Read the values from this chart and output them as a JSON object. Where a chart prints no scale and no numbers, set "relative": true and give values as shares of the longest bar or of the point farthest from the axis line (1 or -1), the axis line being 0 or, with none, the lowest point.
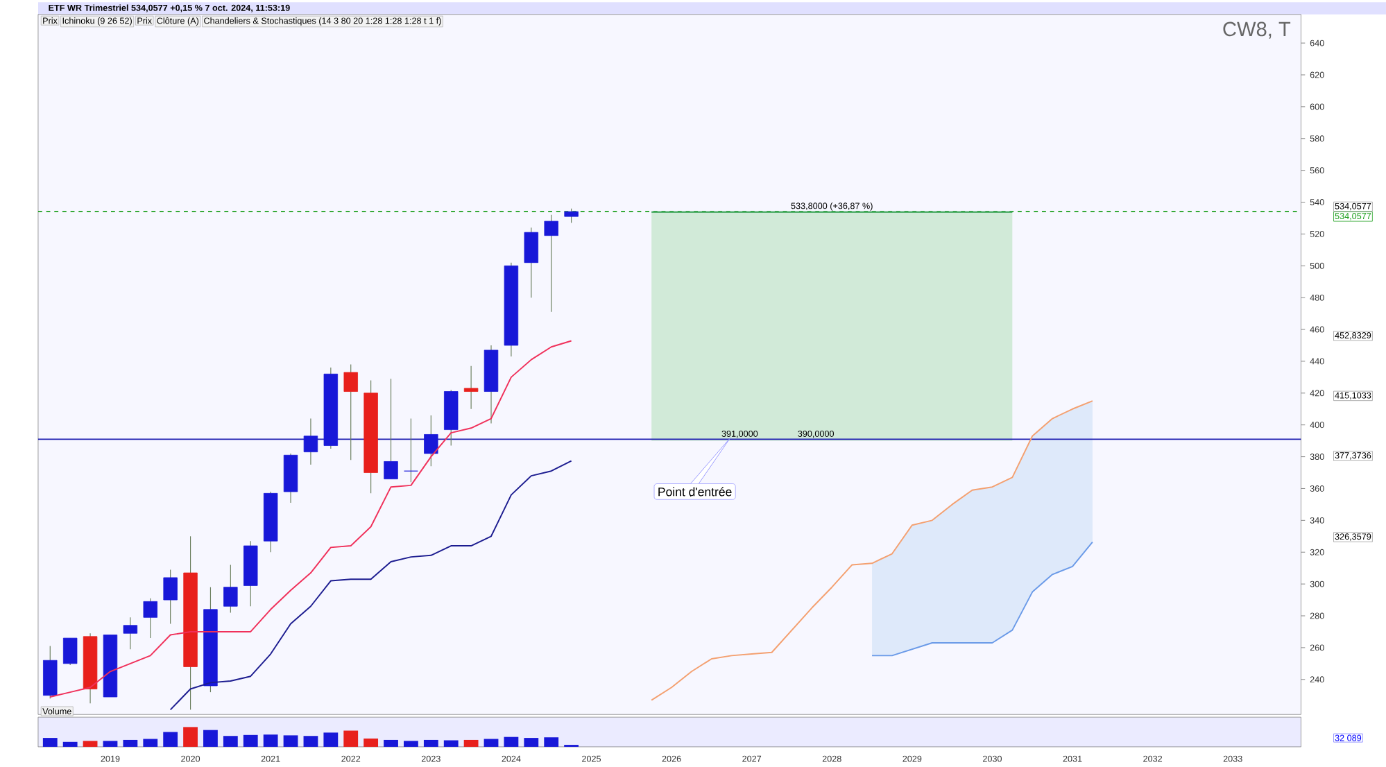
{
  "chart_data": [
    {
      "type": "candlestick",
      "title": "ETF WR Trimestriel 534,0577 +0,15 % 7 oct. 2024, 11:53:19",
      "subtitle": "CW8, T",
      "x": [
        2018.25,
        2018.5,
        2018.75,
        2019.0,
        2019.25,
        2019.5,
        2019.75,
        2020.0,
        2020.25,
        2020.5,
        2020.75,
        2021.0,
        2021.25,
        2021.5,
        2021.75,
        2022.0,
        2022.25,
        2022.5,
        2022.75,
        2023.0,
        2023.25,
        2023.5,
        2023.75,
        2024.0,
        2024.25,
        2024.5,
        2024.75
      ],
      "ohlc": [
        [
          230,
          261,
          228,
          252
        ],
        [
          250,
          266,
          249,
          266
        ],
        [
          267,
          269,
          225,
          234
        ],
        [
          229,
          268,
          229,
          268
        ],
        [
          269,
          279,
          259,
          274
        ],
        [
          279,
          291,
          266,
          289
        ],
        [
          290,
          309,
          275,
          304
        ],
        [
          307,
          330,
          221,
          248
        ],
        [
          236,
          298,
          232,
          284
        ],
        [
          286,
          312,
          282,
          298
        ],
        [
          299,
          327,
          286,
          324
        ],
        [
          327,
          358,
          320,
          357
        ],
        [
          358,
          382,
          351,
          381
        ],
        [
          383,
          404,
          375,
          393
        ],
        [
          387,
          436,
          385,
          432
        ],
        [
          433,
          438,
          378,
          421
        ],
        [
          420,
          428,
          357,
          370
        ],
        [
          366,
          429,
          366,
          377
        ],
        [
          371,
          404,
          364,
          371
        ],
        [
          382,
          406,
          374,
          394
        ],
        [
          397,
          422,
          387,
          421
        ],
        [
          423,
          437,
          410,
          421
        ],
        [
          421,
          450,
          401,
          447
        ],
        [
          450,
          502,
          443,
          500
        ],
        [
          502,
          524,
          480,
          521
        ],
        [
          519,
          532,
          471,
          528
        ],
        [
          531,
          536,
          527,
          534.0577
        ]
      ],
      "colors": [
        "#1818d8",
        "#1818d8",
        "#e8201c",
        "#1818d8",
        "#1818d8",
        "#1818d8",
        "#1818d8",
        "#e8201c",
        "#1818d8",
        "#1818d8",
        "#1818d8",
        "#1818d8",
        "#1818d8",
        "#1818d8",
        "#1818d8",
        "#e8201c",
        "#e8201c",
        "#1818d8",
        "#1818d8",
        "#1818d8",
        "#1818d8",
        "#e8201c",
        "#1818d8",
        "#1818d8",
        "#1818d8",
        "#1818d8",
        "#1818d8"
      ],
      "series": [
        {
          "type": "line",
          "color": "#2e9e4e",
          "x": [
            2025.75,
            2030.25
          ],
          "values": [
            533.8,
            533.8
          ],
          "lower": [
            390,
            390
          ],
          "upper": [
            533.8,
            533.8
          ]
        },
        {
          "type": "line",
          "color": "#f0305a",
          "x": [
            2018.25,
            2018.5,
            2018.75,
            2019.0,
            2019.25,
            2019.5,
            2019.75,
            2020.0,
            2020.25,
            2020.5,
            2020.75,
            2021.0,
            2021.25,
            2021.5,
            2021.75,
            2022.0,
            2022.25,
            2022.5,
            2022.75,
            2023.0,
            2023.25,
            2023.5,
            2023.75,
            2024.0,
            2024.25,
            2024.5,
            2024.75
          ],
          "values": [
            229,
            232,
            235,
            245,
            250,
            255,
            268,
            270,
            270,
            270,
            270,
            284,
            296,
            307,
            323,
            324,
            336,
            361,
            362,
            380,
            395,
            398,
            404,
            430,
            441,
            449,
            452.8329
          ]
        },
        {
          "type": "line",
          "color": "#1c1c90",
          "x": [
            2019.75,
            2020.0,
            2020.25,
            2020.5,
            2020.75,
            2021.0,
            2021.25,
            2021.5,
            2021.75,
            2022.0,
            2022.25,
            2022.5,
            2022.75,
            2023.0,
            2023.25,
            2023.5,
            2023.75,
            2024.0,
            2024.25,
            2024.5,
            2024.75
          ],
          "values": [
            221,
            234,
            238,
            239,
            242,
            256,
            275,
            286,
            302,
            303,
            303,
            314,
            317,
            318,
            324,
            324,
            330,
            356,
            368,
            371,
            377.3736
          ]
        },
        {
          "type": "line",
          "color": "#f4a070",
          "x": [
            2025.75,
            2026.0,
            2026.25,
            2026.5,
            2026.75,
            2027.0,
            2027.25,
            2027.5,
            2027.75,
            2028.0,
            2028.25,
            2028.5,
            2028.75,
            2029.0,
            2029.25,
            2029.5,
            2029.75,
            2030.0,
            2030.25,
            2030.5,
            2030.75,
            2031.0,
            2031.25
          ],
          "values": [
            227,
            235,
            245,
            253,
            255,
            256,
            257,
            271,
            285,
            298,
            312,
            313,
            319,
            337,
            340,
            350,
            359,
            361,
            367,
            393,
            404,
            410,
            415.1033
          ]
        },
        {
          "type": "line",
          "color": "#6a9ae8",
          "x": [
            2028.5,
            2028.75,
            2029.0,
            2029.25,
            2029.5,
            2029.75,
            2030.0,
            2030.25,
            2030.5,
            2030.75,
            2031.0,
            2031.25
          ],
          "values": [
            255,
            255,
            259,
            263,
            263,
            263,
            263,
            271,
            295,
            306,
            311,
            326.3579
          ],
          "lower": [
            255,
            255,
            259,
            263,
            263,
            263,
            263,
            271,
            295,
            306,
            311,
            326.3579
          ],
          "upper": [
            313,
            319,
            337,
            340,
            350,
            359,
            361,
            367,
            393,
            404,
            410,
            415.1033
          ]
        }
      ],
      "ref_lines": [
        {
          "axis": "y",
          "value": 534.0577,
          "label": "534,0577",
          "color": "#1a9e1a",
          "line_style": "dashed"
        },
        {
          "axis": "y",
          "value": 391,
          "color": "#1c1cb0"
        }
      ],
      "annotations": [
        "Prix",
        "Ichinoku (9 26 52)",
        "Prix",
        "Clôture (A)",
        "Chandeliers & Stochastiques (14 3 80 20 1:28 1:28 1:28 t 1 f)",
        "534,0577",
        "452,8329",
        "415,1033",
        "377,3736",
        "326,3579",
        {
          "text": "533,8000 (+36,87 %)",
          "x": 2028,
          "y": 533.8
        },
        {
          "text": "390,0000",
          "x": 2027.8,
          "y": 391
        },
        {
          "text": "391,0000",
          "x": 2026.85,
          "y": 391
        },
        "Point d'entrée"
      ],
      "xlim": [
        2018.1,
        2033.85
      ],
      "ylim": [
        218,
        658
      ],
      "yticks": [
        240,
        260,
        280,
        300,
        320,
        340,
        360,
        380,
        400,
        420,
        440,
        460,
        480,
        500,
        520,
        540,
        560,
        580,
        600,
        620,
        640
      ],
      "tick_labels": "y"
    },
    {
      "type": "bar",
      "relative": true,
      "x": [
        2018.25,
        2018.5,
        2018.75,
        2019.0,
        2019.25,
        2019.5,
        2019.75,
        2020.0,
        2020.25,
        2020.5,
        2020.75,
        2021.0,
        2021.25,
        2021.5,
        2021.75,
        2022.0,
        2022.25,
        2022.5,
        2022.75,
        2023.0,
        2023.25,
        2023.5,
        2023.75,
        2024.0,
        2024.25,
        2024.5,
        2024.75
      ],
      "values": [
        0.45,
        0.25,
        0.3,
        0.3,
        0.35,
        0.4,
        0.75,
        1.0,
        0.85,
        0.55,
        0.6,
        0.62,
        0.58,
        0.55,
        0.72,
        0.82,
        0.42,
        0.35,
        0.3,
        0.35,
        0.33,
        0.35,
        0.4,
        0.5,
        0.45,
        0.48,
        0.1
      ],
      "colors": [
        "#1818d8",
        "#1818d8",
        "#e8201c",
        "#1818d8",
        "#1818d8",
        "#1818d8",
        "#1818d8",
        "#e8201c",
        "#1818d8",
        "#1818d8",
        "#1818d8",
        "#1818d8",
        "#1818d8",
        "#1818d8",
        "#1818d8",
        "#e8201c",
        "#e8201c",
        "#1818d8",
        "#1818d8",
        "#1818d8",
        "#1818d8",
        "#e8201c",
        "#1818d8",
        "#1818d8",
        "#1818d8",
        "#1818d8",
        "#1818d8"
      ],
      "annotations": [
        "Volume",
        "32 089"
      ],
      "xlim": [
        2018.1,
        2033.85
      ],
      "xticks": [
        2019,
        2020,
        2021,
        2022,
        2023,
        2024,
        2025,
        2026,
        2027,
        2028,
        2029,
        2030,
        2031,
        2032,
        2033
      ],
      "tick_labels": "x"
    }
  ]
}
